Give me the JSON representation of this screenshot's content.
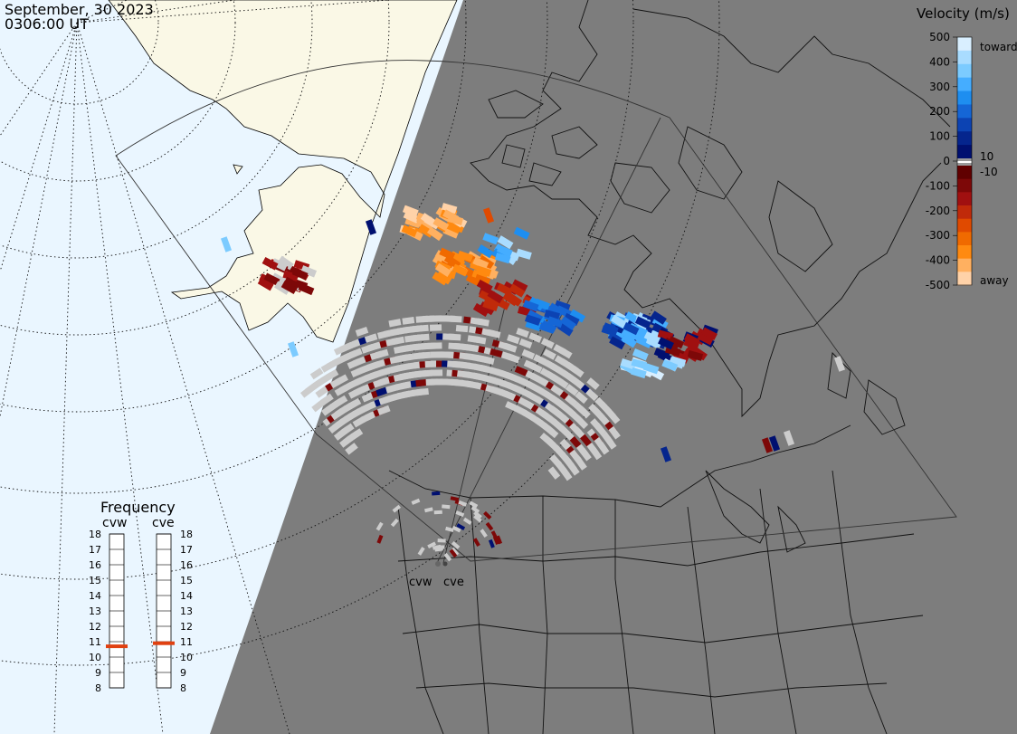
{
  "header": {
    "date": "September, 30 2023",
    "time": "0306:00 UT"
  },
  "colorbar": {
    "title": "Velocity (m/s)",
    "ticks": [
      "500",
      "400",
      "300",
      "200",
      "100",
      "0",
      "-100",
      "-200",
      "-300",
      "-400",
      "-500"
    ],
    "mid_labels": [
      "10",
      "-10"
    ],
    "toward_label": "toward",
    "away_label": "away",
    "positive_colors": [
      "#d9efff",
      "#a9dcff",
      "#7ccbff",
      "#45adff",
      "#1e8ef0",
      "#1566d6",
      "#0c43b3",
      "#05258d",
      "#001070"
    ],
    "negative_colors": [
      "#600000",
      "#7d0808",
      "#a01010",
      "#c02a0a",
      "#e04a00",
      "#f06a00",
      "#ff8a10",
      "#ffb060",
      "#ffd2a8"
    ],
    "ground_scatter_color": "#9a9a9a"
  },
  "frequency": {
    "title": "Frequency",
    "radars": [
      {
        "name": "cvw",
        "frequency_mhz": 10.7
      },
      {
        "name": "cve",
        "frequency_mhz": 10.9
      }
    ],
    "scale": [
      "18",
      "17",
      "16",
      "15",
      "14",
      "13",
      "12",
      "11",
      "10",
      "9",
      "8"
    ],
    "marker_color": "#e04010"
  },
  "sites": [
    {
      "name": "cvw"
    },
    {
      "name": "cve"
    }
  ],
  "colors": {
    "daylight": "#eaf6ff",
    "night": "#7d7d7d",
    "land_day": "#faf8e6",
    "scatter_gray": "#cccccc"
  }
}
